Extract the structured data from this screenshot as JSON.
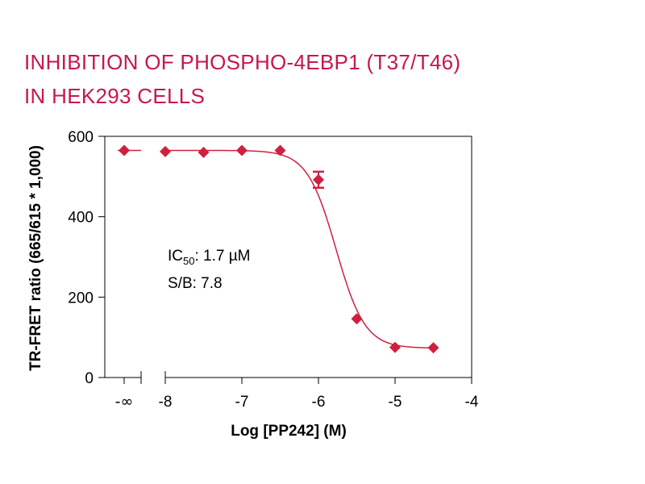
{
  "chart_data": {
    "type": "scatter",
    "title_lines": [
      "INHIBITION OF PHOSPHO-4EBP1 (T37/T46)",
      "IN HEK293 CELLS"
    ],
    "xlabel": "Log [PP242] (M)",
    "ylabel": "TR-FRET ratio (665/615 * 1,000)",
    "xlim": [
      -8.5,
      -4
    ],
    "ylim": [
      0,
      600
    ],
    "x_ticks": [
      {
        "value": -8,
        "label": "-8"
      },
      {
        "value": -7,
        "label": "-7"
      },
      {
        "value": -6,
        "label": "-6"
      },
      {
        "value": -5,
        "label": "-5"
      },
      {
        "value": -4,
        "label": "-4"
      }
    ],
    "x_zero_tick_label": "-∞",
    "y_ticks": [
      {
        "value": 0,
        "label": "0"
      },
      {
        "value": 200,
        "label": "200"
      },
      {
        "value": 400,
        "label": "400"
      },
      {
        "value": 600,
        "label": "600"
      }
    ],
    "zero_dose_value": 565,
    "points": [
      {
        "x": -8.0,
        "y": 562
      },
      {
        "x": -7.5,
        "y": 560
      },
      {
        "x": -7.0,
        "y": 565
      },
      {
        "x": -6.5,
        "y": 565
      },
      {
        "x": -6.0,
        "y": 492,
        "err": 20
      },
      {
        "x": -5.5,
        "y": 146
      },
      {
        "x": -5.0,
        "y": 75
      },
      {
        "x": -4.5,
        "y": 74
      }
    ],
    "fit": {
      "top": 565,
      "bottom": 73,
      "logIC50": -5.77,
      "hill": -2.3
    },
    "annotations": {
      "ic50_prefix": "IC",
      "ic50_subscript": "50",
      "ic50_value": ": 1.7 µM",
      "sb": "S/B: 7.8"
    },
    "colors": {
      "series": "#d0203e",
      "title": "#c8174a",
      "axis": "#000000"
    },
    "grid": false
  }
}
